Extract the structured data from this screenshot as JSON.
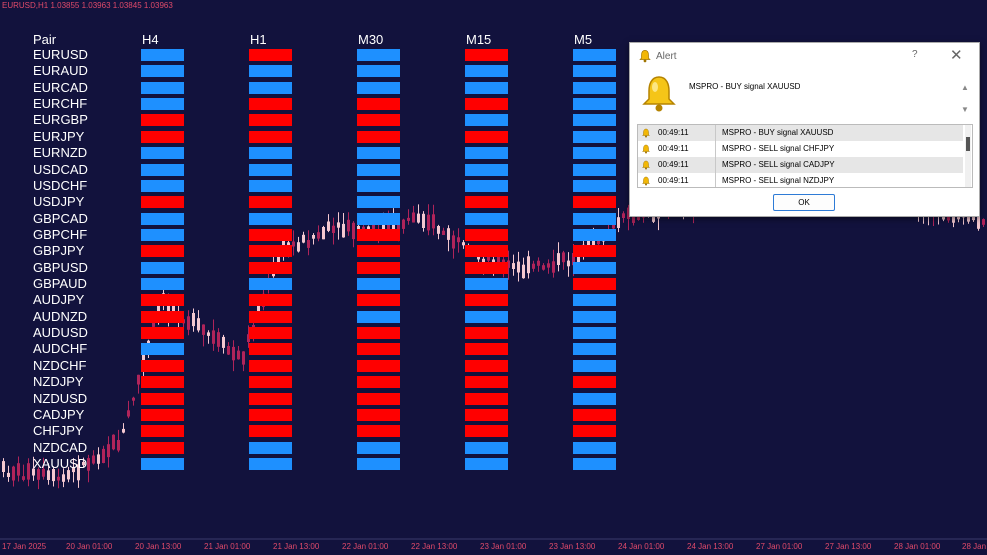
{
  "colors": {
    "background": "#12123d",
    "bullish": "#1e90ff",
    "bearish": "#ff0000",
    "candle_up": "#f4c8d0",
    "candle_down": "#b0245a",
    "axis_text": "#e04a6a"
  },
  "chart": {
    "symbol_info": "EURUSD,H1  1.03855 1.03963 1.03845 1.03963",
    "date_labels": [
      "17 Jan 2025",
      "20 Jan 01:00",
      "20 Jan 13:00",
      "21 Jan 01:00",
      "21 Jan 13:00",
      "22 Jan 01:00",
      "22 Jan 13:00",
      "23 Jan 01:00",
      "23 Jan 13:00",
      "24 Jan 01:00",
      "24 Jan 13:00",
      "27 Jan 01:00",
      "27 Jan 13:00",
      "28 Jan 01:00",
      "28 Jan"
    ]
  },
  "dashboard": {
    "pair_header": "Pair",
    "timeframes": [
      "H4",
      "H1",
      "M30",
      "M15",
      "M5"
    ],
    "pairs": [
      "EURUSD",
      "EURAUD",
      "EURCAD",
      "EURCHF",
      "EURGBP",
      "EURJPY",
      "EURNZD",
      "USDCAD",
      "USDCHF",
      "USDJPY",
      "GBPCAD",
      "GBPCHF",
      "GBPJPY",
      "GBPUSD",
      "GBPAUD",
      "AUDJPY",
      "AUDNZD",
      "AUDUSD",
      "AUDCHF",
      "NZDCHF",
      "NZDJPY",
      "NZDUSD",
      "CADJPY",
      "CHFJPY",
      "NZDCAD",
      "XAUUSD"
    ],
    "signals": [
      [
        "B",
        "R",
        "B",
        "R",
        "B"
      ],
      [
        "B",
        "B",
        "B",
        "B",
        "B"
      ],
      [
        "B",
        "B",
        "B",
        "B",
        "B"
      ],
      [
        "B",
        "R",
        "R",
        "R",
        "B"
      ],
      [
        "R",
        "R",
        "R",
        "B",
        "B"
      ],
      [
        "R",
        "R",
        "R",
        "R",
        "B"
      ],
      [
        "B",
        "B",
        "B",
        "B",
        "B"
      ],
      [
        "B",
        "B",
        "B",
        "B",
        "B"
      ],
      [
        "B",
        "B",
        "B",
        "B",
        "B"
      ],
      [
        "R",
        "R",
        "B",
        "R",
        "R"
      ],
      [
        "B",
        "B",
        "B",
        "B",
        "B"
      ],
      [
        "B",
        "R",
        "R",
        "R",
        "B"
      ],
      [
        "R",
        "R",
        "R",
        "R",
        "R"
      ],
      [
        "B",
        "R",
        "R",
        "R",
        "B"
      ],
      [
        "B",
        "B",
        "B",
        "B",
        "R"
      ],
      [
        "R",
        "R",
        "R",
        "R",
        "B"
      ],
      [
        "R",
        "R",
        "B",
        "B",
        "B"
      ],
      [
        "R",
        "R",
        "R",
        "R",
        "B"
      ],
      [
        "B",
        "R",
        "R",
        "R",
        "B"
      ],
      [
        "R",
        "R",
        "R",
        "R",
        "B"
      ],
      [
        "R",
        "R",
        "R",
        "R",
        "R"
      ],
      [
        "R",
        "R",
        "R",
        "R",
        "B"
      ],
      [
        "R",
        "R",
        "R",
        "R",
        "R"
      ],
      [
        "R",
        "R",
        "R",
        "R",
        "R"
      ],
      [
        "R",
        "B",
        "B",
        "B",
        "B"
      ],
      [
        "B",
        "B",
        "B",
        "B",
        "B"
      ]
    ]
  },
  "alert": {
    "title": "Alert",
    "help": "?",
    "close": "✕",
    "message": "MSPRO - BUY signal XAUUSD",
    "rows": [
      {
        "time": "00:49:11",
        "text": "MSPRO - BUY signal XAUUSD"
      },
      {
        "time": "00:49:11",
        "text": "MSPRO - SELL signal CHFJPY"
      },
      {
        "time": "00:49:11",
        "text": "MSPRO - SELL signal CADJPY"
      },
      {
        "time": "00:49:11",
        "text": "MSPRO - SELL signal NZDJPY"
      }
    ],
    "ok_label": "OK",
    "scroll_up": "▲",
    "scroll_down": "▼"
  }
}
